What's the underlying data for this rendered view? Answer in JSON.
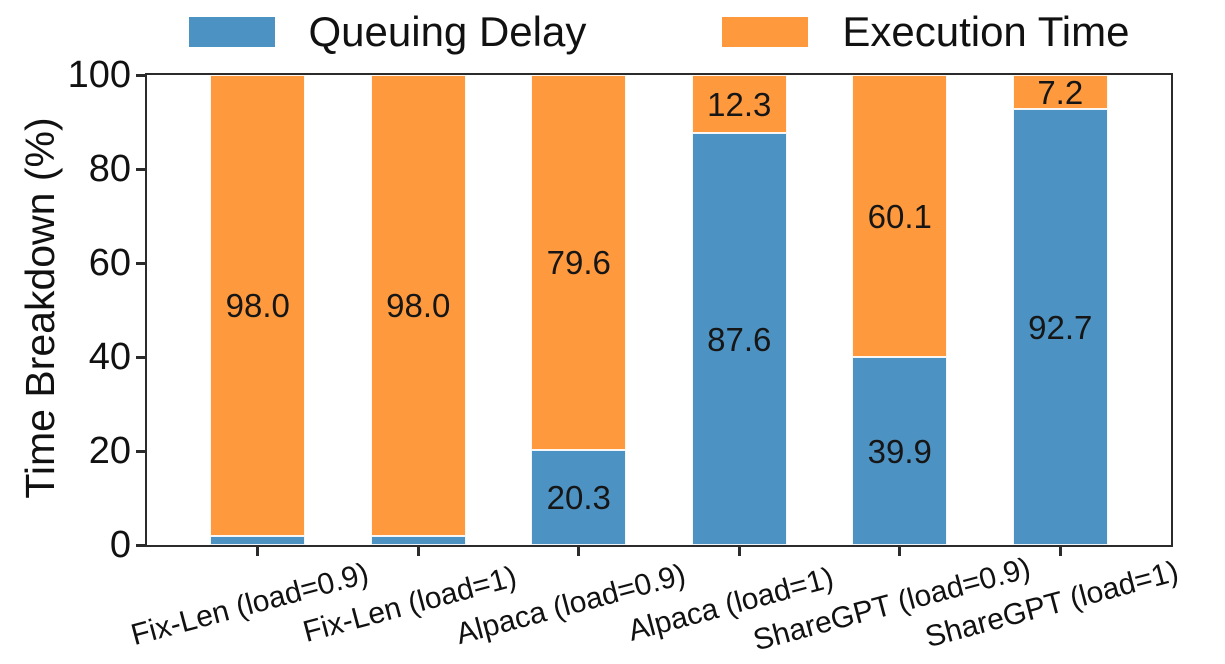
{
  "chart_data": {
    "type": "bar",
    "stacked": true,
    "title": "",
    "xlabel": "",
    "ylabel": "Time Breakdown (%)",
    "ylim": [
      0,
      100
    ],
    "yticks": [
      0,
      20,
      40,
      60,
      80,
      100
    ],
    "grid": false,
    "legend_position": "top",
    "axis_color": "#2b2b2b",
    "categories": [
      "Fix-Len (load=0.9)",
      "Fix-Len (load=1)",
      "Alpaca (load=0.9)",
      "Alpaca (load=1)",
      "ShareGPT (load=0.9)",
      "ShareGPT (load=1)"
    ],
    "series": [
      {
        "name": "Queuing Delay",
        "color": "#4c92c3",
        "values": [
          2.0,
          2.0,
          20.3,
          87.6,
          39.9,
          92.7
        ],
        "labels": [
          "",
          "",
          "20.3",
          "87.6",
          "39.9",
          "92.7"
        ]
      },
      {
        "name": "Execution Time",
        "color": "#ff993e",
        "values": [
          98.0,
          98.0,
          79.6,
          12.3,
          60.1,
          7.2
        ],
        "labels": [
          "98.0",
          "98.0",
          "79.6",
          "12.3",
          "60.1",
          "7.2"
        ]
      }
    ]
  }
}
